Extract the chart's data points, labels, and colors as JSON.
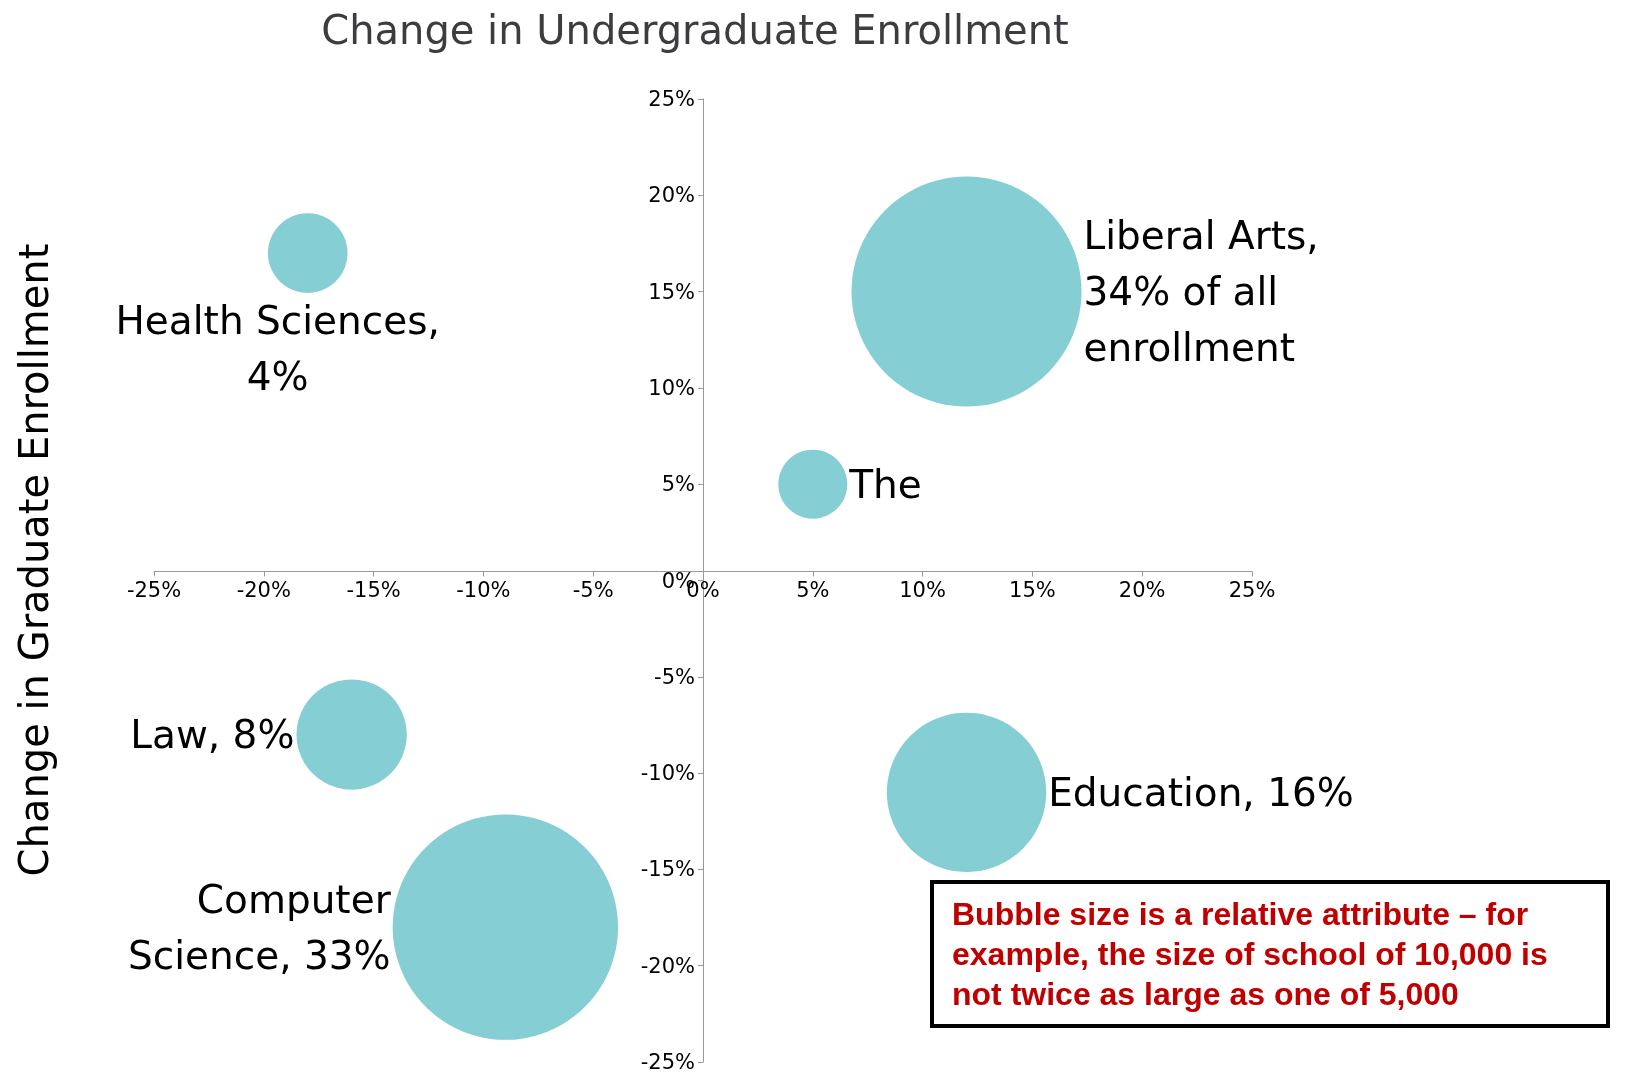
{
  "chart_data": {
    "type": "bubble",
    "xlabel": "Change in Undergraduate Enrollment",
    "ylabel": "Change in Graduate Enrollment",
    "xlim": [
      -25,
      25
    ],
    "xticks": [
      {
        "value": -25,
        "label": "-25%"
      },
      {
        "value": -20,
        "label": "-20%"
      },
      {
        "value": -15,
        "label": "-15%"
      },
      {
        "value": -10,
        "label": "-10%"
      },
      {
        "value": -5,
        "label": "-5%"
      },
      {
        "value": 0,
        "label": "0%"
      },
      {
        "value": 5,
        "label": "5%"
      },
      {
        "value": 10,
        "label": "10%"
      },
      {
        "value": 15,
        "label": "15%"
      },
      {
        "value": 20,
        "label": "20%"
      },
      {
        "value": 25,
        "label": "25%"
      }
    ],
    "ylim": [
      -25,
      25
    ],
    "yticks": [
      {
        "value": -25,
        "label": "-25%"
      },
      {
        "value": -20,
        "label": "-20%"
      },
      {
        "value": -15,
        "label": "-15%"
      },
      {
        "value": -10,
        "label": "-10%"
      },
      {
        "value": -5,
        "label": "-5%"
      },
      {
        "value": 0,
        "label": "0%"
      },
      {
        "value": 5,
        "label": "5%"
      },
      {
        "value": 10,
        "label": "10%"
      },
      {
        "value": 15,
        "label": "15%"
      },
      {
        "value": 20,
        "label": "20%"
      },
      {
        "value": 25,
        "label": "25%"
      }
    ],
    "series": [
      {
        "color": "#66c2c8",
        "x": [
          -18,
          12,
          5,
          -16,
          -9,
          12
        ],
        "values": [
          17,
          15,
          5,
          -8,
          -18,
          -11
        ],
        "sizes": [
          0.12,
          1,
          0.09,
          0.23,
          0.96,
          0.48
        ]
      }
    ],
    "annotations": [
      {
        "text": "Liberal Arts,\n34% of all\nenrollment",
        "x": 12,
        "y": 15
      },
      {
        "text": "Health Sciences,\n4%",
        "x": -18,
        "y": 17
      },
      {
        "text": "The",
        "x": 5,
        "y": 5
      },
      {
        "text": "Law, 8%",
        "x": -16,
        "y": -8
      },
      {
        "text": "Computer\nScience, 33%",
        "x": -9,
        "y": -18
      },
      {
        "text": "Education, 16%",
        "x": 12,
        "y": -11
      },
      "Bubble size is a relative attribute – for example, the size of school of 10,000 is not twice as large as one of 5,000"
    ],
    "grid": false
  }
}
